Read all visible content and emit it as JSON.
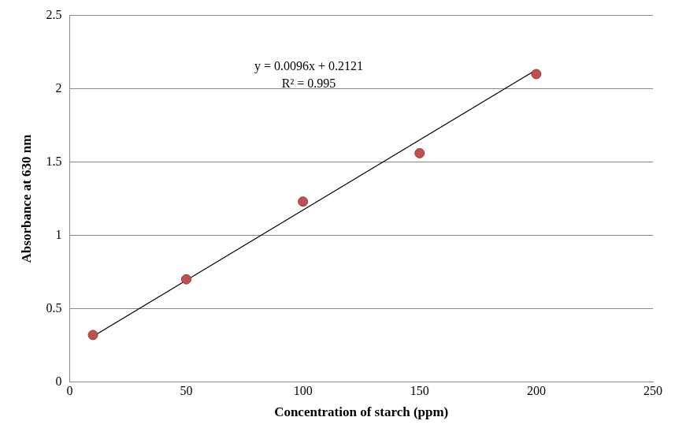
{
  "chart_data": {
    "type": "scatter",
    "x_label": "Concentration of starch (ppm)",
    "y_label": "Absorbance at 630 nm",
    "annotations": [
      "y = 0.0096x + 0.2121",
      "R² = 0.995"
    ],
    "x": [
      10,
      50,
      100,
      150,
      200
    ],
    "series": [
      {
        "values": [
          0.32,
          0.7,
          1.23,
          1.56,
          2.1
        ],
        "color": "#c0504d",
        "marker": "circle"
      }
    ],
    "trendline": {
      "x": [
        10,
        200
      ],
      "values": [
        0.31,
        2.13
      ],
      "color": "#000000",
      "line_style": "solid"
    },
    "xlim": [
      0,
      250
    ],
    "xticks": [
      0,
      50,
      100,
      150,
      200,
      250
    ],
    "ylim": [
      0,
      2.5
    ],
    "yticks": [
      0,
      0.5,
      1,
      1.5,
      2,
      2.5
    ],
    "grid": "y"
  }
}
